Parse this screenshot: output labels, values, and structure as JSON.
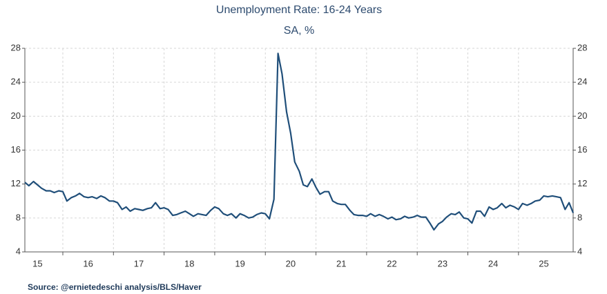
{
  "chart_data": {
    "type": "line",
    "title": "Unemployment Rate: 16-24 Years",
    "subtitle": "SA, %",
    "source": "Source:  @ernietedeschi analysis/BLS/Haver",
    "x": [
      2015.25,
      2015.33,
      2015.42,
      2015.5,
      2015.58,
      2015.67,
      2015.75,
      2015.83,
      2015.92,
      2016.0,
      2016.08,
      2016.17,
      2016.25,
      2016.33,
      2016.42,
      2016.5,
      2016.58,
      2016.67,
      2016.75,
      2016.83,
      2016.92,
      2017.0,
      2017.08,
      2017.17,
      2017.25,
      2017.33,
      2017.42,
      2017.5,
      2017.58,
      2017.67,
      2017.75,
      2017.83,
      2017.92,
      2018.0,
      2018.08,
      2018.17,
      2018.25,
      2018.33,
      2018.42,
      2018.5,
      2018.58,
      2018.67,
      2018.75,
      2018.83,
      2018.92,
      2019.0,
      2019.08,
      2019.17,
      2019.25,
      2019.33,
      2019.42,
      2019.5,
      2019.58,
      2019.67,
      2019.75,
      2019.83,
      2019.92,
      2020.0,
      2020.08,
      2020.17,
      2020.25,
      2020.33,
      2020.42,
      2020.5,
      2020.58,
      2020.67,
      2020.75,
      2020.83,
      2020.92,
      2021.0,
      2021.08,
      2021.17,
      2021.25,
      2021.33,
      2021.42,
      2021.5,
      2021.58,
      2021.67,
      2021.75,
      2021.83,
      2021.92,
      2022.0,
      2022.08,
      2022.17,
      2022.25,
      2022.33,
      2022.42,
      2022.5,
      2022.58,
      2022.67,
      2022.75,
      2022.83,
      2022.92,
      2023.0,
      2023.08,
      2023.17,
      2023.25,
      2023.33,
      2023.42,
      2023.5,
      2023.58,
      2023.67,
      2023.75,
      2023.83,
      2023.92,
      2024.0,
      2024.08,
      2024.17,
      2024.25,
      2024.33,
      2024.42,
      2024.5,
      2024.58,
      2024.67,
      2024.75,
      2024.83,
      2024.92,
      2025.0,
      2025.08,
      2025.17,
      2025.25,
      2025.33,
      2025.42,
      2025.5,
      2025.58,
      2025.67,
      2025.75,
      2025.83,
      2025.92,
      2026.0,
      2026.08
    ],
    "series": [
      {
        "color": "#1f4e79",
        "values": [
          12.2,
          11.8,
          12.3,
          11.9,
          11.5,
          11.2,
          11.2,
          11.0,
          11.2,
          11.1,
          10.0,
          10.4,
          10.6,
          10.9,
          10.5,
          10.4,
          10.5,
          10.3,
          10.6,
          10.4,
          10.0,
          10.0,
          9.8,
          9.0,
          9.3,
          8.8,
          9.1,
          9.0,
          8.9,
          9.1,
          9.2,
          9.8,
          9.1,
          9.2,
          9.0,
          8.3,
          8.4,
          8.6,
          8.8,
          8.5,
          8.2,
          8.5,
          8.4,
          8.3,
          8.9,
          9.3,
          9.1,
          8.5,
          8.3,
          8.5,
          8.0,
          8.5,
          8.3,
          8.0,
          8.1,
          8.4,
          8.6,
          8.5,
          7.9,
          10.2,
          27.4,
          25.0,
          20.5,
          18.0,
          14.6,
          13.5,
          11.9,
          11.7,
          12.6,
          11.6,
          10.8,
          11.1,
          11.1,
          10.0,
          9.7,
          9.6,
          9.6,
          8.9,
          8.4,
          8.3,
          8.3,
          8.2,
          8.5,
          8.2,
          8.4,
          8.2,
          7.9,
          8.1,
          7.8,
          7.9,
          8.2,
          8.0,
          8.1,
          8.3,
          8.1,
          8.1,
          7.4,
          6.6,
          7.3,
          7.6,
          8.1,
          8.5,
          8.4,
          8.7,
          8.0,
          7.9,
          7.4,
          8.8,
          8.8,
          8.2,
          9.3,
          9.0,
          9.2,
          9.7,
          9.2,
          9.5,
          9.3,
          9.0,
          9.7,
          9.5,
          9.7,
          10.0,
          10.1,
          10.6,
          10.5,
          10.6,
          10.5,
          10.4,
          9.0,
          9.8,
          8.6
        ]
      }
    ],
    "xlim": [
      2015.25,
      2026.08
    ],
    "xticks": [
      {
        "value": 2015.5,
        "label": "15"
      },
      {
        "value": 2016.5,
        "label": "16"
      },
      {
        "value": 2017.5,
        "label": "17"
      },
      {
        "value": 2018.5,
        "label": "18"
      },
      {
        "value": 2019.5,
        "label": "19"
      },
      {
        "value": 2020.5,
        "label": "20"
      },
      {
        "value": 2021.5,
        "label": "21"
      },
      {
        "value": 2022.5,
        "label": "22"
      },
      {
        "value": 2023.5,
        "label": "23"
      },
      {
        "value": 2024.5,
        "label": "24"
      },
      {
        "value": 2025.5,
        "label": "25"
      }
    ],
    "xgrid": [
      2016,
      2017,
      2018,
      2019,
      2020,
      2021,
      2022,
      2023,
      2024,
      2025
    ],
    "ylim": [
      4,
      28
    ],
    "yticks": [
      4,
      8,
      12,
      16,
      20,
      24,
      28
    ],
    "grid": true
  }
}
